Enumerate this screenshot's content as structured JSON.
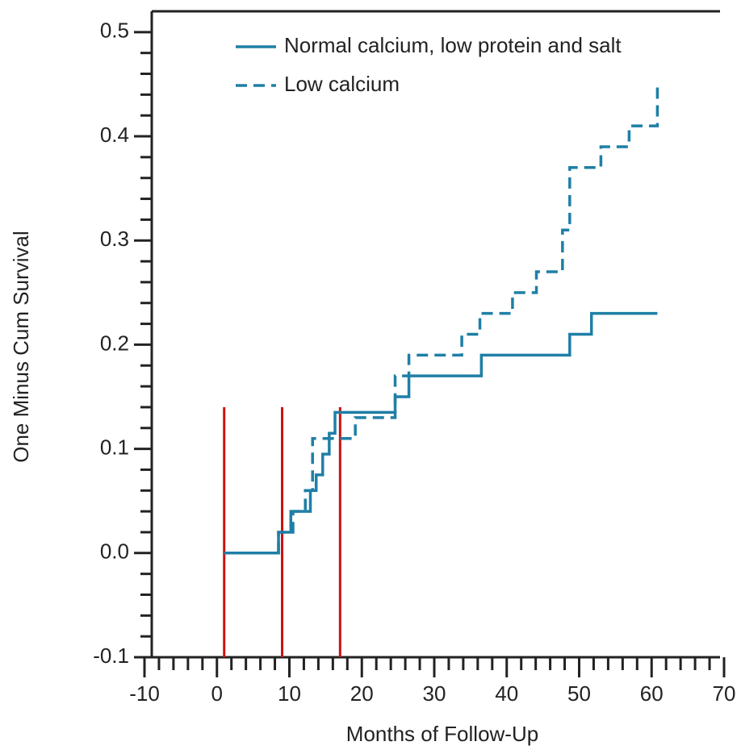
{
  "chart_data": {
    "type": "step",
    "x_label": "Months of Follow-Up",
    "y_label": "One Minus Cum Survival",
    "xlim": [
      -10,
      70
    ],
    "xticks": [
      -10,
      0,
      10,
      20,
      30,
      40,
      50,
      60,
      70
    ],
    "ylim": [
      -0.1,
      0.52
    ],
    "yticks": [
      -0.1,
      {
        "value": 0,
        "label": "0.0"
      },
      0.1,
      0.2,
      0.3,
      0.4,
      0.5
    ],
    "series": [
      {
        "name": "Normal calcium, low protein and salt",
        "color": "#1f7fa6",
        "dash": false,
        "x": [
          1,
          8.5,
          10.2,
          12.9,
          13.7,
          14.6,
          15.5,
          16.3,
          24.6,
          26.5,
          36.5,
          48.7,
          51.7,
          60.8
        ],
        "values": [
          0.0,
          0.02,
          0.04,
          0.06,
          0.075,
          0.095,
          0.115,
          0.135,
          0.15,
          0.17,
          0.19,
          0.21,
          0.23,
          0.23
        ]
      },
      {
        "name": "Low calcium",
        "color": "#1f7fa6",
        "dash": true,
        "x": [
          1,
          8.5,
          10.5,
          12.2,
          13.2,
          19.1,
          24.6,
          26.5,
          33.8,
          36.3,
          40.8,
          44.1,
          47.7,
          48.7,
          53,
          56.9,
          60.8
        ],
        "values": [
          0.0,
          0.02,
          0.04,
          0.06,
          0.11,
          0.13,
          0.17,
          0.19,
          0.21,
          0.23,
          0.25,
          0.27,
          0.31,
          0.37,
          0.39,
          0.41,
          0.45
        ]
      }
    ],
    "vlines": {
      "color": "#cc1111",
      "x": [
        1,
        9,
        17
      ],
      "top": 0.14
    }
  }
}
